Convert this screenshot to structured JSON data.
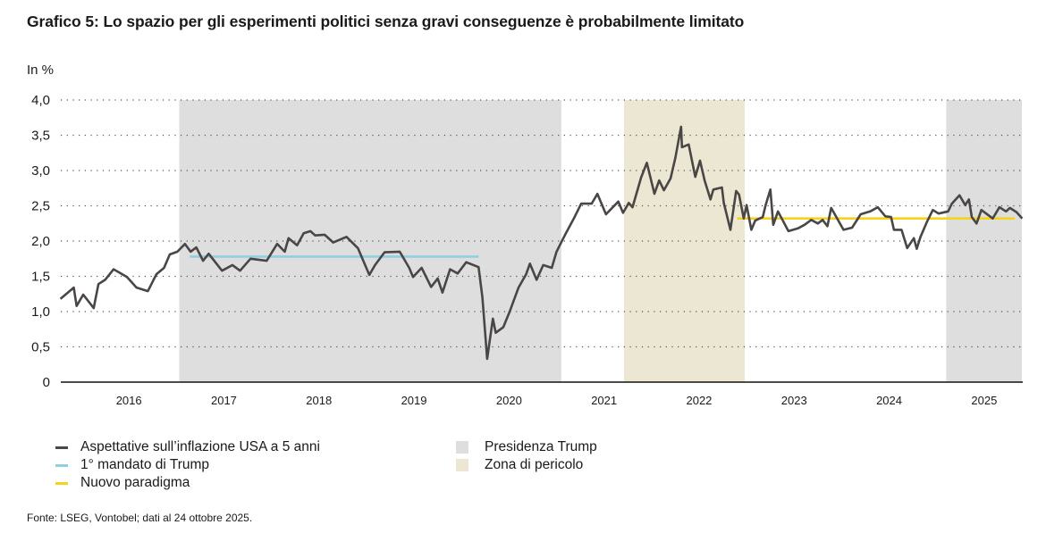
{
  "title": "Grafico 5: Lo spazio per gli esperimenti politici senza gravi conseguenze è probabilmente limitato",
  "source": "Fonte: LSEG, Vontobel; dati al 24 ottobre 2025.",
  "chart_data": {
    "type": "line",
    "title": "Grafico 5: Lo spazio per gli esperimenti politici senza gravi conseguenze è probabilmente limitato",
    "ylabel": "In %",
    "xlabel": "",
    "ylim": [
      0,
      4.0
    ],
    "xlim": [
      2015.78,
      2025.9
    ],
    "yticks": [
      "0",
      "0,5",
      "1,0",
      "1,5",
      "2,0",
      "2,5",
      "3,0",
      "3,5",
      "4,0"
    ],
    "ytick_values": [
      0,
      0.5,
      1.0,
      1.5,
      2.0,
      2.5,
      3.0,
      3.5,
      4.0
    ],
    "xticks": [
      "2016",
      "2017",
      "2018",
      "2019",
      "2020",
      "2021",
      "2022",
      "2023",
      "2024",
      "2025"
    ],
    "grid": "horizontal dotted",
    "legend_position": "bottom",
    "colors": {
      "series": "#4a4646",
      "first_term": "#8fcfe0",
      "new_paradigm": "#f5d31c",
      "trump": "#dedede",
      "danger": "#ece7d3"
    },
    "series": [
      {
        "name": "Aspettative sull’inflazione USA a 5 anni",
        "x": [
          2015.78,
          2015.92,
          2015.95,
          2016.02,
          2016.13,
          2016.18,
          2016.25,
          2016.34,
          2016.48,
          2016.58,
          2016.7,
          2016.79,
          2016.87,
          2016.93,
          2017.01,
          2017.09,
          2017.15,
          2017.21,
          2017.28,
          2017.34,
          2017.48,
          2017.59,
          2017.67,
          2017.78,
          2017.95,
          2018.06,
          2018.14,
          2018.18,
          2018.27,
          2018.34,
          2018.41,
          2018.46,
          2018.56,
          2018.65,
          2018.79,
          2018.91,
          2019.03,
          2019.09,
          2019.19,
          2019.35,
          2019.45,
          2019.49,
          2019.58,
          2019.68,
          2019.75,
          2019.8,
          2019.88,
          2019.96,
          2020.05,
          2020.18,
          2020.22,
          2020.27,
          2020.33,
          2020.36,
          2020.44,
          2020.51,
          2020.6,
          2020.68,
          2020.72,
          2020.79,
          2020.86,
          2020.95,
          2021.0,
          2021.09,
          2021.19,
          2021.26,
          2021.37,
          2021.43,
          2021.52,
          2021.65,
          2021.7,
          2021.76,
          2021.8,
          2021.89,
          2021.95,
          2022.03,
          2022.08,
          2022.13,
          2022.2,
          2022.25,
          2022.31,
          2022.32,
          2022.39,
          2022.46,
          2022.51,
          2022.56,
          2022.62,
          2022.65,
          2022.74,
          2022.76,
          2022.83,
          2022.89,
          2022.92,
          2022.97,
          2023.0,
          2023.05,
          2023.09,
          2023.17,
          2023.2,
          2023.25,
          2023.28,
          2023.33,
          2023.44,
          2023.54,
          2023.61,
          2023.68,
          2023.75,
          2023.8,
          2023.85,
          2023.89,
          2024.02,
          2024.11,
          2024.2,
          2024.3,
          2024.38,
          2024.46,
          2024.52,
          2024.55,
          2024.63,
          2024.69,
          2024.76,
          2024.79,
          2024.83,
          2024.9,
          2024.96,
          2025.02,
          2025.12,
          2025.16,
          2025.24,
          2025.3,
          2025.34,
          2025.37,
          2025.42,
          2025.47,
          2025.59,
          2025.66,
          2025.73,
          2025.77,
          2025.84,
          2025.9
        ],
        "values": [
          1.18,
          1.34,
          1.08,
          1.24,
          1.05,
          1.39,
          1.45,
          1.6,
          1.49,
          1.34,
          1.29,
          1.53,
          1.62,
          1.81,
          1.85,
          1.96,
          1.85,
          1.91,
          1.72,
          1.82,
          1.58,
          1.66,
          1.58,
          1.75,
          1.72,
          1.96,
          1.85,
          2.04,
          1.94,
          2.11,
          2.14,
          2.08,
          2.09,
          1.98,
          2.06,
          1.9,
          1.52,
          1.66,
          1.84,
          1.85,
          1.62,
          1.49,
          1.62,
          1.35,
          1.47,
          1.27,
          1.6,
          1.54,
          1.7,
          1.63,
          1.2,
          0.33,
          0.9,
          0.7,
          0.78,
          1.01,
          1.34,
          1.53,
          1.68,
          1.45,
          1.66,
          1.62,
          1.85,
          2.09,
          2.34,
          2.53,
          2.53,
          2.67,
          2.38,
          2.56,
          2.4,
          2.54,
          2.48,
          2.9,
          3.11,
          2.67,
          2.86,
          2.72,
          2.89,
          3.18,
          3.62,
          3.33,
          3.37,
          2.91,
          3.14,
          2.85,
          2.59,
          2.73,
          2.76,
          2.54,
          2.16,
          2.71,
          2.66,
          2.32,
          2.51,
          2.16,
          2.29,
          2.34,
          2.51,
          2.73,
          2.23,
          2.42,
          2.14,
          2.18,
          2.23,
          2.3,
          2.25,
          2.3,
          2.21,
          2.47,
          2.16,
          2.19,
          2.38,
          2.42,
          2.48,
          2.35,
          2.34,
          2.16,
          2.16,
          1.9,
          2.04,
          1.89,
          2.06,
          2.28,
          2.44,
          2.39,
          2.42,
          2.53,
          2.65,
          2.51,
          2.59,
          2.34,
          2.25,
          2.44,
          2.32,
          2.48,
          2.42,
          2.47,
          2.41,
          2.32
        ]
      },
      {
        "name": "1° mandato di Trump",
        "x": [
          2017.14,
          2020.18
        ],
        "values": [
          1.78,
          1.78
        ]
      },
      {
        "name": "Nuovo paradigma",
        "x": [
          2022.9,
          2025.82
        ],
        "values": [
          2.32,
          2.32
        ]
      }
    ],
    "shaded_regions": [
      {
        "name": "Presidenza Trump",
        "from": 2017.03,
        "to": 2021.05
      },
      {
        "name": "Zona di pericolo",
        "from": 2021.71,
        "to": 2022.98
      },
      {
        "name": "Presidenza Trump",
        "from": 2025.1,
        "to": 2025.9
      }
    ]
  },
  "legend": {
    "items": [
      {
        "label": "Aspettative sull’inflazione USA a 5 anni",
        "color": "#4a4646"
      },
      {
        "label": "1° mandato di Trump",
        "color": "#8fcfe0"
      },
      {
        "label": "Nuovo paradigma",
        "color": "#f5d31c"
      },
      {
        "label": "Presidenza Trump",
        "color": "#dedede"
      },
      {
        "label": "Zona di pericolo",
        "color": "#ece7d3"
      }
    ]
  }
}
